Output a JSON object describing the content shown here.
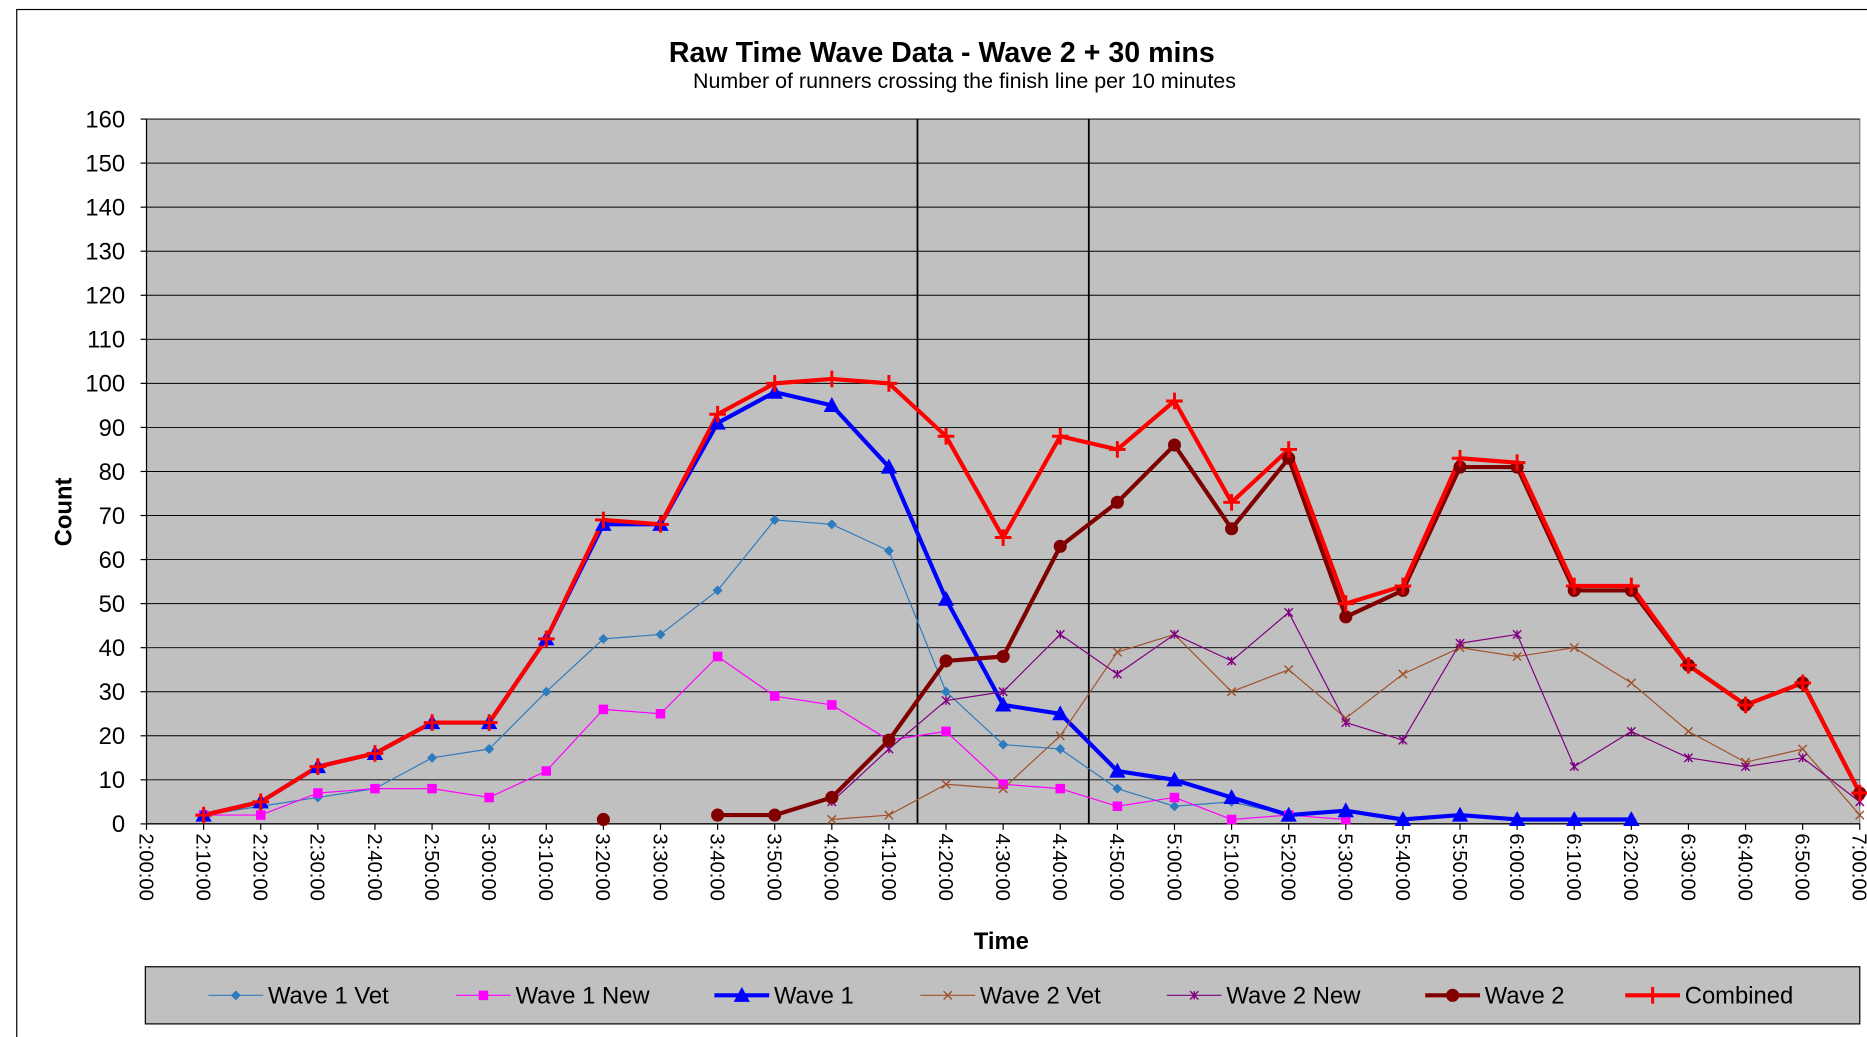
{
  "chart_data": {
    "type": "line",
    "title": "Raw Time Wave Data - Wave 2 + 30 mins",
    "subtitle": "Number of runners crossing the finish line per 10 minutes",
    "x_label": "Time",
    "y_label": "Count",
    "categories": [
      "2:00:00",
      "2:10:00",
      "2:20:00",
      "2:30:00",
      "2:40:00",
      "2:50:00",
      "3:00:00",
      "3:10:00",
      "3:20:00",
      "3:30:00",
      "3:40:00",
      "3:50:00",
      "4:00:00",
      "4:10:00",
      "4:20:00",
      "4:30:00",
      "4:40:00",
      "4:50:00",
      "5:00:00",
      "5:10:00",
      "5:20:00",
      "5:30:00",
      "5:40:00",
      "5:50:00",
      "6:00:00",
      "6:10:00",
      "6:20:00",
      "6:30:00",
      "6:40:00",
      "6:50:00",
      "7:00:00"
    ],
    "ylim": [
      0,
      160
    ],
    "yticks": [
      0,
      10,
      20,
      30,
      40,
      50,
      60,
      70,
      80,
      90,
      100,
      110,
      120,
      130,
      140,
      150,
      160
    ],
    "grid": true,
    "plot_background": "#c0c0c0",
    "legend": "bottom",
    "vlines": [
      13.5,
      16.5
    ],
    "series": [
      {
        "name": "Wave 1 Vet",
        "color": "#2f7bbf",
        "marker": "diamond",
        "width": 1,
        "values": [
          null,
          2,
          4,
          6,
          8,
          15,
          17,
          30,
          42,
          43,
          53,
          69,
          68,
          62,
          30,
          18,
          17,
          8,
          4,
          5,
          2,
          3,
          1,
          2,
          1,
          1,
          1,
          null,
          null,
          null,
          null
        ]
      },
      {
        "name": "Wave 1 New",
        "color": "#ff00ff",
        "marker": "square",
        "width": 1,
        "values": [
          null,
          2,
          2,
          7,
          8,
          8,
          6,
          12,
          26,
          25,
          38,
          29,
          27,
          19,
          21,
          9,
          8,
          4,
          6,
          1,
          2,
          1,
          null,
          null,
          null,
          null,
          null,
          null,
          null,
          null,
          null
        ]
      },
      {
        "name": "Wave 1",
        "color": "#0000ff",
        "marker": "triangle",
        "width": 3.5,
        "values": [
          null,
          2,
          5,
          13,
          16,
          23,
          23,
          42,
          68,
          68,
          91,
          98,
          95,
          81,
          51,
          27,
          25,
          12,
          10,
          6,
          2,
          3,
          1,
          2,
          1,
          1,
          1,
          null,
          null,
          null,
          null
        ]
      },
      {
        "name": "Wave 2 Vet",
        "color": "#a0522d",
        "marker": "x",
        "width": 1,
        "values": [
          null,
          null,
          null,
          null,
          null,
          null,
          null,
          null,
          null,
          null,
          null,
          null,
          1,
          2,
          9,
          8,
          20,
          39,
          43,
          30,
          35,
          24,
          34,
          40,
          38,
          40,
          32,
          21,
          14,
          17,
          2
        ]
      },
      {
        "name": "Wave 2 New",
        "color": "#800080",
        "marker": "star",
        "width": 1,
        "values": [
          null,
          null,
          null,
          null,
          null,
          null,
          null,
          null,
          null,
          null,
          null,
          null,
          5,
          17,
          28,
          30,
          43,
          34,
          43,
          37,
          48,
          23,
          19,
          41,
          43,
          13,
          21,
          15,
          13,
          15,
          5
        ]
      },
      {
        "name": "Wave 2",
        "color": "#800000",
        "marker": "circle",
        "width": 3.5,
        "values": [
          null,
          null,
          null,
          null,
          null,
          null,
          null,
          null,
          1,
          null,
          2,
          2,
          6,
          19,
          37,
          38,
          63,
          73,
          86,
          67,
          83,
          47,
          53,
          81,
          81,
          53,
          53,
          36,
          27,
          32,
          7
        ]
      },
      {
        "name": "Combined",
        "color": "#ff0000",
        "marker": "plus",
        "width": 3.5,
        "values": [
          null,
          2,
          5,
          13,
          16,
          23,
          23,
          42,
          69,
          68,
          93,
          100,
          101,
          100,
          88,
          65,
          88,
          85,
          96,
          73,
          85,
          50,
          54,
          83,
          82,
          54,
          54,
          36,
          27,
          32,
          7
        ]
      }
    ]
  }
}
